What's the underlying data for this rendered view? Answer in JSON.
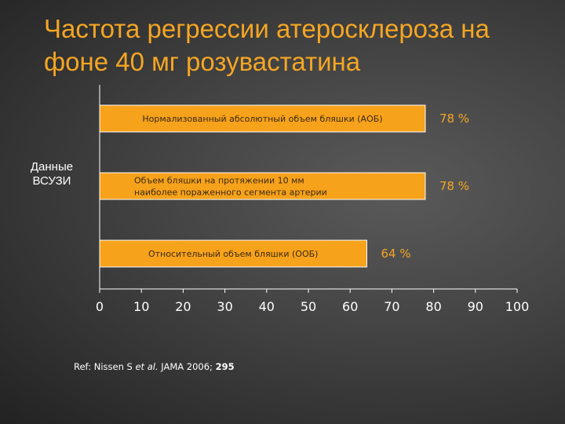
{
  "title_lines": [
    "Частота регрессии атеросклероза на",
    "фоне 40 мг розувастатина"
  ],
  "side_label_lines": [
    "Данные",
    "ВСУЗИ"
  ],
  "reference": {
    "prefix": "Ref: Nissen S ",
    "etal": "et al.",
    "journal": " JAMA 2006; ",
    "volume": "295"
  },
  "colors": {
    "bar": "#f7a21b",
    "bar_edge": "#ffffff",
    "title": "#f5a623",
    "value_label": "#f5a623",
    "axis": "#ffffff"
  },
  "chart_data": {
    "type": "bar",
    "orientation": "horizontal",
    "categories": [
      [
        "Нормализованный абсолютный объем бляшки (АОБ)"
      ],
      [
        "Объем бляшки на протяжении 10 мм",
        "наиболее пораженного сегмента артерии"
      ],
      [
        "Относительный объем бляшки  (ООБ)"
      ]
    ],
    "values": [
      78,
      78,
      64
    ],
    "value_labels": [
      "78 %",
      "78 %",
      "64 %"
    ],
    "xlim": [
      0,
      100
    ],
    "xticks": [
      0,
      10,
      20,
      30,
      40,
      50,
      60,
      70,
      80,
      90,
      100
    ],
    "grid": false,
    "legend": "none"
  }
}
